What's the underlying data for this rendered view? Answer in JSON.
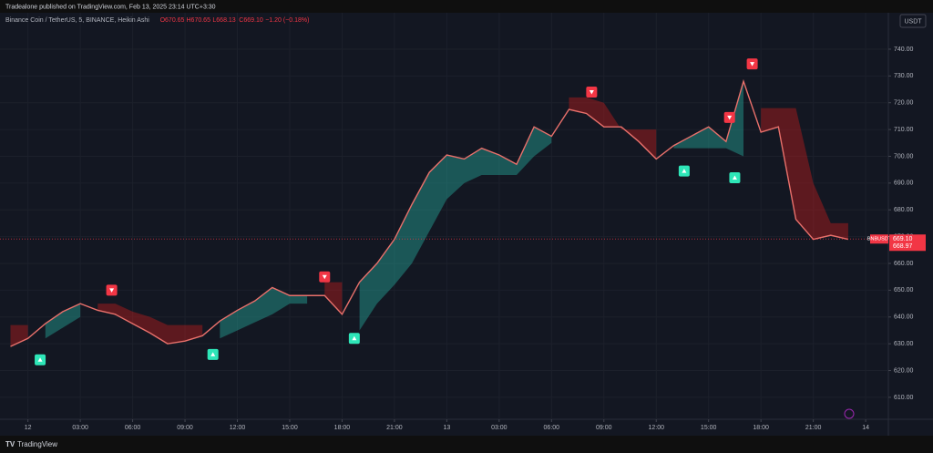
{
  "chart_data": {
    "type": "line",
    "title": "Tradealone published on TradingView.com, Feb 13, 2025 23:14 UTC+3:30",
    "symbol_info": "Binance Coin / TetherUS, 5, BINANCE, Heikin Ashi",
    "ohlc": [
      "O670.65",
      "H670.65",
      "L668.13",
      "C669.10",
      "−1.20 (−0.18%)"
    ],
    "currency": "USDT",
    "brand": "TradingView",
    "xlim": [
      -1.6,
      49.3
    ],
    "ylim": [
      601.8,
      753.6
    ],
    "yticks": [
      {
        "value": 610,
        "label": "610.00"
      },
      {
        "value": 620,
        "label": "620.00"
      },
      {
        "value": 630,
        "label": "630.00"
      },
      {
        "value": 640,
        "label": "640.00"
      },
      {
        "value": 650,
        "label": "650.00"
      },
      {
        "value": 660,
        "label": "660.00"
      },
      {
        "value": 670,
        "label": "670.00"
      },
      {
        "value": 680,
        "label": "680.00"
      },
      {
        "value": 690,
        "label": "690.00"
      },
      {
        "value": 700,
        "label": "700.00"
      },
      {
        "value": 710,
        "label": "710.00"
      },
      {
        "value": 720,
        "label": "720.00"
      },
      {
        "value": 730,
        "label": "730.00"
      },
      {
        "value": 740,
        "label": "740.00"
      }
    ],
    "xticks": [
      {
        "value": 0,
        "label": "12"
      },
      {
        "value": 3,
        "label": "03:00"
      },
      {
        "value": 6,
        "label": "06:00"
      },
      {
        "value": 9,
        "label": "09:00"
      },
      {
        "value": 12,
        "label": "12:00"
      },
      {
        "value": 15,
        "label": "15:00"
      },
      {
        "value": 18,
        "label": "18:00"
      },
      {
        "value": 21,
        "label": "21:00"
      },
      {
        "value": 24,
        "label": "13"
      },
      {
        "value": 27,
        "label": "03:00"
      },
      {
        "value": 30,
        "label": "06:00"
      },
      {
        "value": 33,
        "label": "09:00"
      },
      {
        "value": 36,
        "label": "12:00"
      },
      {
        "value": 39,
        "label": "15:00"
      },
      {
        "value": 42,
        "label": "18:00"
      },
      {
        "value": 45,
        "label": "21:00"
      },
      {
        "value": 48,
        "label": "14"
      }
    ],
    "x": [
      -1,
      0,
      1,
      2,
      3,
      4,
      5,
      6,
      7,
      8,
      9,
      10,
      11,
      12,
      13,
      14,
      15,
      16,
      17,
      18,
      19,
      20,
      21,
      22,
      23,
      24,
      25,
      26,
      27,
      28,
      29,
      30,
      31,
      32,
      33,
      34,
      35,
      36,
      37,
      38,
      39,
      40,
      41,
      42,
      43,
      44,
      45,
      46,
      47
    ],
    "series": [
      {
        "name": "BNBUSDT",
        "color": "#e8706b",
        "values": [
          629,
          632,
          637.5,
          642,
          645,
          642.5,
          641,
          637.5,
          634,
          630,
          631,
          633,
          638.5,
          642.5,
          646,
          651,
          648,
          648,
          648,
          641,
          653,
          660,
          669,
          682,
          694,
          700.5,
          699,
          703,
          700.5,
          697,
          711,
          707.5,
          717.5,
          716,
          711,
          711,
          705.5,
          699,
          704,
          707.5,
          711,
          705.5,
          728,
          709,
          711,
          676.5,
          669,
          670.5,
          669
        ]
      }
    ],
    "bands": [
      {
        "color": "#26a69a",
        "values": [
          null,
          null,
          632,
          636,
          640,
          null,
          null,
          null,
          null,
          null,
          null,
          null,
          632,
          635,
          638,
          641,
          645,
          645,
          null,
          null,
          635,
          645,
          652,
          660,
          672,
          684,
          690,
          693,
          693,
          693,
          700,
          705,
          null,
          null,
          null,
          null,
          null,
          null,
          703,
          703,
          703,
          703,
          700,
          null,
          null,
          null,
          null,
          null,
          null
        ]
      },
      {
        "color": "#b71c1c",
        "values": [
          637,
          637,
          null,
          null,
          null,
          645,
          645,
          642,
          640,
          637,
          637,
          637,
          null,
          null,
          null,
          null,
          null,
          null,
          653,
          653,
          null,
          null,
          null,
          null,
          null,
          null,
          null,
          null,
          null,
          null,
          null,
          null,
          722,
          722,
          720,
          710,
          710,
          710,
          null,
          null,
          null,
          null,
          null,
          718,
          718,
          718,
          690,
          675,
          675
        ]
      }
    ],
    "buy_signals": {
      "color": "#2ee6b8",
      "x": [
        0.7,
        10.6,
        18.7,
        37.6,
        40.5
      ],
      "values": [
        624,
        626,
        632,
        694.5,
        692
      ]
    },
    "sell_signals": {
      "color": "#f23645",
      "x": [
        4.8,
        17,
        32.3,
        40.2,
        41.5
      ],
      "values": [
        650,
        655,
        724,
        714.5,
        734.5
      ]
    },
    "last_price": {
      "symbol": "BNBUSDT",
      "price": {
        "value": 669.1,
        "label": "669.10"
      },
      "countdown": 668.97,
      "color": "#f23645"
    }
  }
}
